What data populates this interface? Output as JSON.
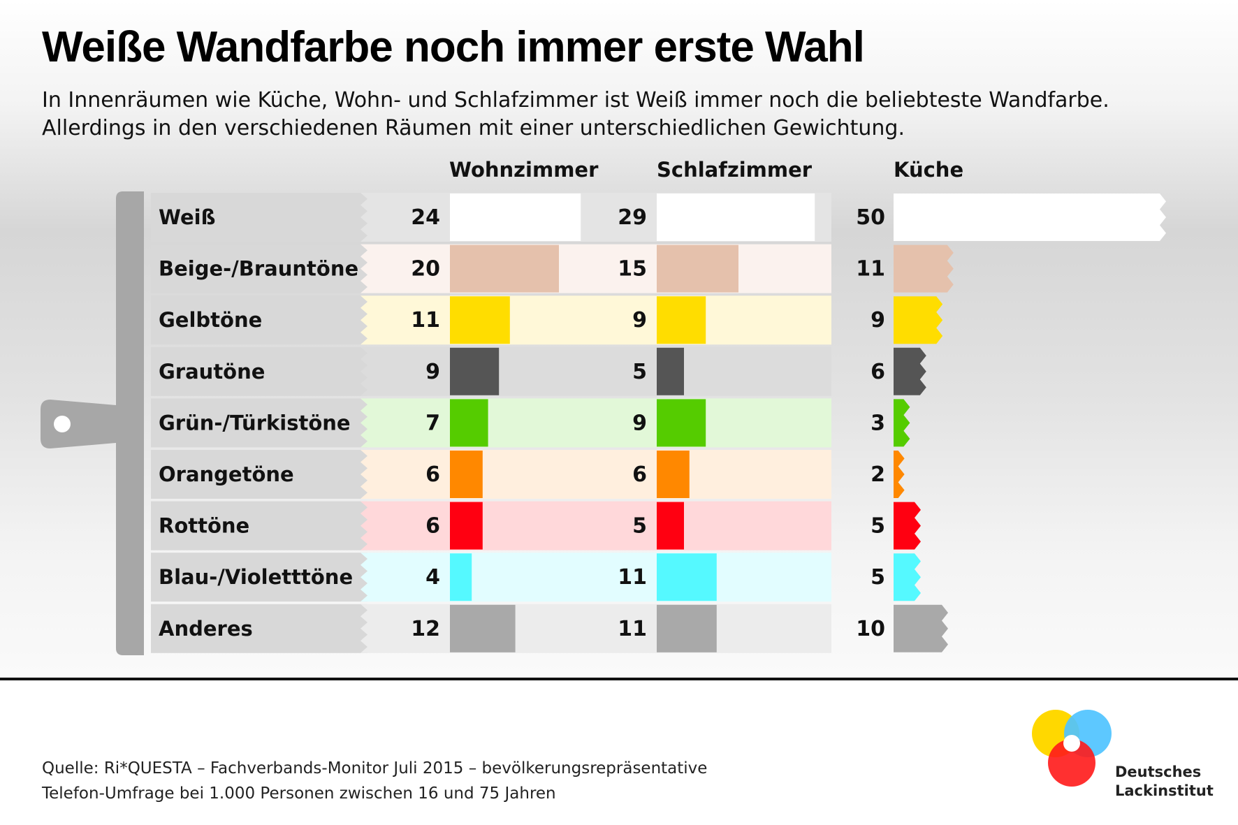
{
  "title": "Weiße Wandfarbe noch immer erste Wahl",
  "subtitle": "In Innenräumen wie Küche, Wohn- und Schlafzimmer ist Weiß immer noch die beliebteste Wandfarbe. Allerdings in den verschiedenen Räumen mit einer unterschiedlichen Gewichtung.",
  "chart_data": {
    "type": "bar",
    "categories": [
      "Weiß",
      "Beige-/Brauntöne",
      "Gelbtöne",
      "Grautöne",
      "Grün-/Türkistöne",
      "Orangetöne",
      "Rottöne",
      "Blau-/Violetttöne",
      "Anderes"
    ],
    "series": [
      {
        "name": "Wohnzimmer",
        "values": [
          24,
          20,
          11,
          9,
          7,
          6,
          6,
          4,
          12
        ]
      },
      {
        "name": "Schlafzimmer",
        "values": [
          29,
          15,
          9,
          5,
          9,
          6,
          5,
          11,
          11
        ]
      },
      {
        "name": "Küche",
        "values": [
          50,
          11,
          9,
          6,
          3,
          2,
          5,
          5,
          10
        ]
      }
    ],
    "category_colors": [
      "#ffffff",
      "#e5c1ac",
      "#ffdd00",
      "#555555",
      "#55cc00",
      "#ff8800",
      "#ff0011",
      "#55f9ff",
      "#a9a9a9"
    ],
    "category_light_colors": [
      "#e4e4e4",
      "#fbf2ee",
      "#fff8d8",
      "#dcdcdc",
      "#e2f8d8",
      "#ffefde",
      "#ffd8da",
      "#e2fdff",
      "#ececec"
    ]
  },
  "source": {
    "line1": "Quelle: Ri*QUESTA – Fachverbands-Monitor Juli 2015 – bevölkerungsrepräsentative",
    "line2": "Telefon-Umfrage bei 1.000 Personen zwischen 16 und 75 Jahren"
  },
  "logo": {
    "line1": "Deutsches",
    "line2": "Lackinstitut"
  }
}
